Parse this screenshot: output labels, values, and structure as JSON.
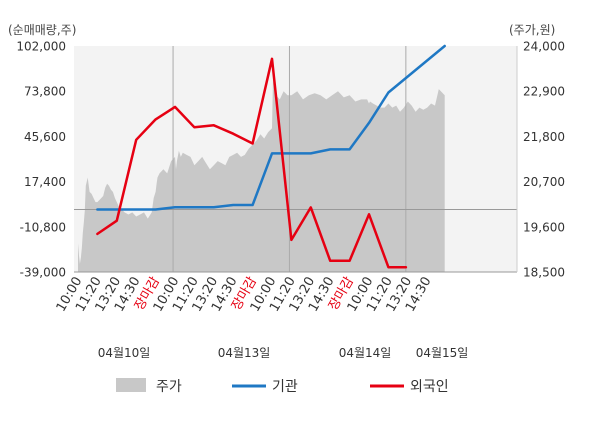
{
  "chart_data": {
    "type": "line",
    "left_axis_title": "(순매매량,주)",
    "right_axis_title": "(주가,원)",
    "left_ticks": [
      "102,000",
      "73,800",
      "45,600",
      "17,400",
      "-10,800",
      "-39,000"
    ],
    "left_ylim": [
      -39000,
      102000
    ],
    "right_ticks": [
      "24,000",
      "22,900",
      "21,800",
      "20,700",
      "19,600",
      "18,500"
    ],
    "right_ylim": [
      18500,
      24000
    ],
    "x_ticks": [
      {
        "label": "10:00",
        "red": false
      },
      {
        "label": "11:20",
        "red": false
      },
      {
        "label": "13:20",
        "red": false
      },
      {
        "label": "14:30",
        "red": false
      },
      {
        "label": "장마감",
        "red": true
      },
      {
        "label": "10:00",
        "red": false
      },
      {
        "label": "11:20",
        "red": false
      },
      {
        "label": "13:20",
        "red": false
      },
      {
        "label": "14:30",
        "red": false
      },
      {
        "label": "장마감",
        "red": true
      },
      {
        "label": "10:00",
        "red": false
      },
      {
        "label": "11:20",
        "red": false
      },
      {
        "label": "13:20",
        "red": false
      },
      {
        "label": "14:30",
        "red": false
      },
      {
        "label": "장마감",
        "red": true
      },
      {
        "label": "10:00",
        "red": false
      },
      {
        "label": "11:20",
        "red": false
      },
      {
        "label": "13:20",
        "red": false
      },
      {
        "label": "14:30",
        "red": false
      }
    ],
    "dates": [
      "04월10일",
      "04월13일",
      "04월14일",
      "04월15일"
    ],
    "series": [
      {
        "name": "주가",
        "kind": "area",
        "axis": "right",
        "color": "#c8c8c8",
        "x": [
          0,
          0.05,
          0.1,
          0.15,
          0.2,
          0.25,
          0.3,
          0.35,
          0.4,
          0.5,
          0.6,
          0.7,
          0.8,
          0.9,
          1.0,
          1.1,
          1.2,
          1.3,
          1.4,
          1.5,
          1.6,
          1.7,
          1.8,
          1.9,
          2.0,
          2.1,
          2.2,
          2.3,
          2.4,
          2.6,
          2.8,
          3.0,
          3.2,
          3.4,
          3.6,
          3.8,
          3.9,
          4.0,
          4.05,
          4.1,
          4.2,
          4.4,
          4.6,
          4.8,
          5.0,
          5.05,
          5.1,
          5.2,
          5.3,
          5.4,
          5.6,
          5.8,
          6.0,
          6.2,
          6.4,
          6.6,
          6.8,
          7.0,
          7.2,
          7.4,
          7.6,
          7.8,
          8.0,
          8.2,
          8.4,
          8.6,
          8.8,
          9.0,
          9.2,
          9.4,
          9.6,
          9.8,
          10.0,
          10.05,
          10.1,
          10.2,
          10.4,
          10.6,
          10.8,
          11.0,
          11.3,
          11.6,
          11.9,
          12.2,
          12.5,
          12.8,
          13.1,
          13.4,
          13.7,
          14.0,
          14.3,
          14.6,
          14.9,
          15.0,
          15.05,
          15.2,
          15.4,
          15.6,
          15.8,
          16.0,
          16.2,
          16.4,
          16.6,
          16.8,
          17.0,
          17.2,
          17.4,
          17.6,
          17.8,
          18.0,
          18.2,
          18.4,
          18.6,
          18.9
        ],
        "values": [
          19200,
          18900,
          18700,
          18850,
          19100,
          19450,
          19700,
          20000,
          20600,
          20800,
          20450,
          20400,
          20300,
          20200,
          20200,
          20250,
          20300,
          20350,
          20550,
          20650,
          20600,
          20500,
          20450,
          20300,
          20200,
          20100,
          20050,
          20000,
          19950,
          19900,
          19950,
          19850,
          19900,
          19950,
          19800,
          19950,
          20300,
          20450,
          20650,
          20800,
          20900,
          21000,
          20900,
          21200,
          21300,
          21000,
          21200,
          21450,
          21300,
          21400,
          21350,
          21300,
          21100,
          21200,
          21300,
          21150,
          21000,
          21100,
          21200,
          21150,
          21100,
          21300,
          21350,
          21400,
          21300,
          21350,
          21500,
          21600,
          21700,
          21850,
          21750,
          21900,
          22000,
          23200,
          23000,
          22800,
          22700,
          22900,
          22800,
          22800,
          22900,
          22700,
          22800,
          22850,
          22800,
          22700,
          22800,
          22900,
          22750,
          22800,
          22650,
          22700,
          22700,
          22600,
          22650,
          22600,
          22550,
          22500,
          22500,
          22600,
          22500,
          22550,
          22400,
          22500,
          22650,
          22550,
          22400,
          22500,
          22450,
          22500,
          22600,
          22550,
          22950,
          22800
        ]
      },
      {
        "name": "기관",
        "kind": "line",
        "axis": "left",
        "color": "#1f78c4",
        "x": [
          1,
          2,
          3,
          4,
          5,
          6,
          7,
          8,
          9,
          10,
          11,
          12,
          13,
          14,
          15,
          16,
          18.9
        ],
        "values": [
          0,
          0,
          0,
          0,
          1400,
          1400,
          1400,
          2800,
          2800,
          35000,
          35000,
          35000,
          37500,
          37500,
          54000,
          73000,
          102000
        ]
      },
      {
        "name": "외국인",
        "kind": "line",
        "axis": "left",
        "color": "#e60012",
        "x": [
          1,
          2,
          3,
          4,
          5,
          6,
          7,
          8,
          9,
          10,
          11,
          12,
          13,
          14,
          15,
          16,
          16.9
        ],
        "values": [
          -15200,
          -7000,
          43500,
          56200,
          64000,
          51300,
          52500,
          47300,
          41200,
          94000,
          -19000,
          1300,
          -32000,
          -32000,
          -3000,
          -36000,
          -36000
        ]
      }
    ],
    "legend": [
      {
        "name": "주가",
        "color": "#c8c8c8",
        "kind": "box"
      },
      {
        "name": "기관",
        "color": "#1f78c4",
        "kind": "line"
      },
      {
        "name": "외국인",
        "color": "#e60012",
        "kind": "line"
      }
    ],
    "grid": "vertical-day-separators",
    "legend_position": "bottom"
  }
}
